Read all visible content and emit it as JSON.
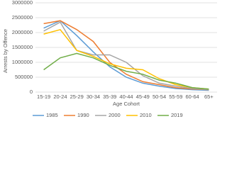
{
  "chart_data": {
    "type": "line",
    "y_label": "Arrests by Offence",
    "x_label": "Age Cohort",
    "categories": [
      "15-19",
      "20-24",
      "25-29",
      "30-34",
      "35-39",
      "40-44",
      "45-49",
      "50-54",
      "55-59",
      "60-64",
      "65+"
    ],
    "series": [
      {
        "name": "1985",
        "color": "#5b9bd5",
        "values": [
          2150000,
          2400000,
          1900000,
          1350000,
          850000,
          500000,
          300000,
          200000,
          120000,
          80000,
          60000
        ]
      },
      {
        "name": "1990",
        "color": "#ed7d31",
        "values": [
          2300000,
          2400000,
          2100000,
          1700000,
          1000000,
          600000,
          350000,
          250000,
          150000,
          100000,
          80000
        ]
      },
      {
        "name": "2000",
        "color": "#a5a5a5",
        "values": [
          2050000,
          2350000,
          1400000,
          1250000,
          1250000,
          1000000,
          550000,
          300000,
          200000,
          120000,
          80000
        ]
      },
      {
        "name": "2010",
        "color": "#ffc000",
        "values": [
          1950000,
          2100000,
          1400000,
          1200000,
          950000,
          800000,
          750000,
          450000,
          250000,
          150000,
          100000
        ]
      },
      {
        "name": "2019",
        "color": "#70ad47",
        "values": [
          750000,
          1150000,
          1300000,
          1150000,
          900000,
          700000,
          600000,
          400000,
          300000,
          150000,
          100000
        ]
      }
    ],
    "ylim": [
      0,
      3000000
    ],
    "yticks": [
      0,
      500000,
      1000000,
      1500000,
      2000000,
      2500000,
      3000000
    ],
    "grid": true
  }
}
